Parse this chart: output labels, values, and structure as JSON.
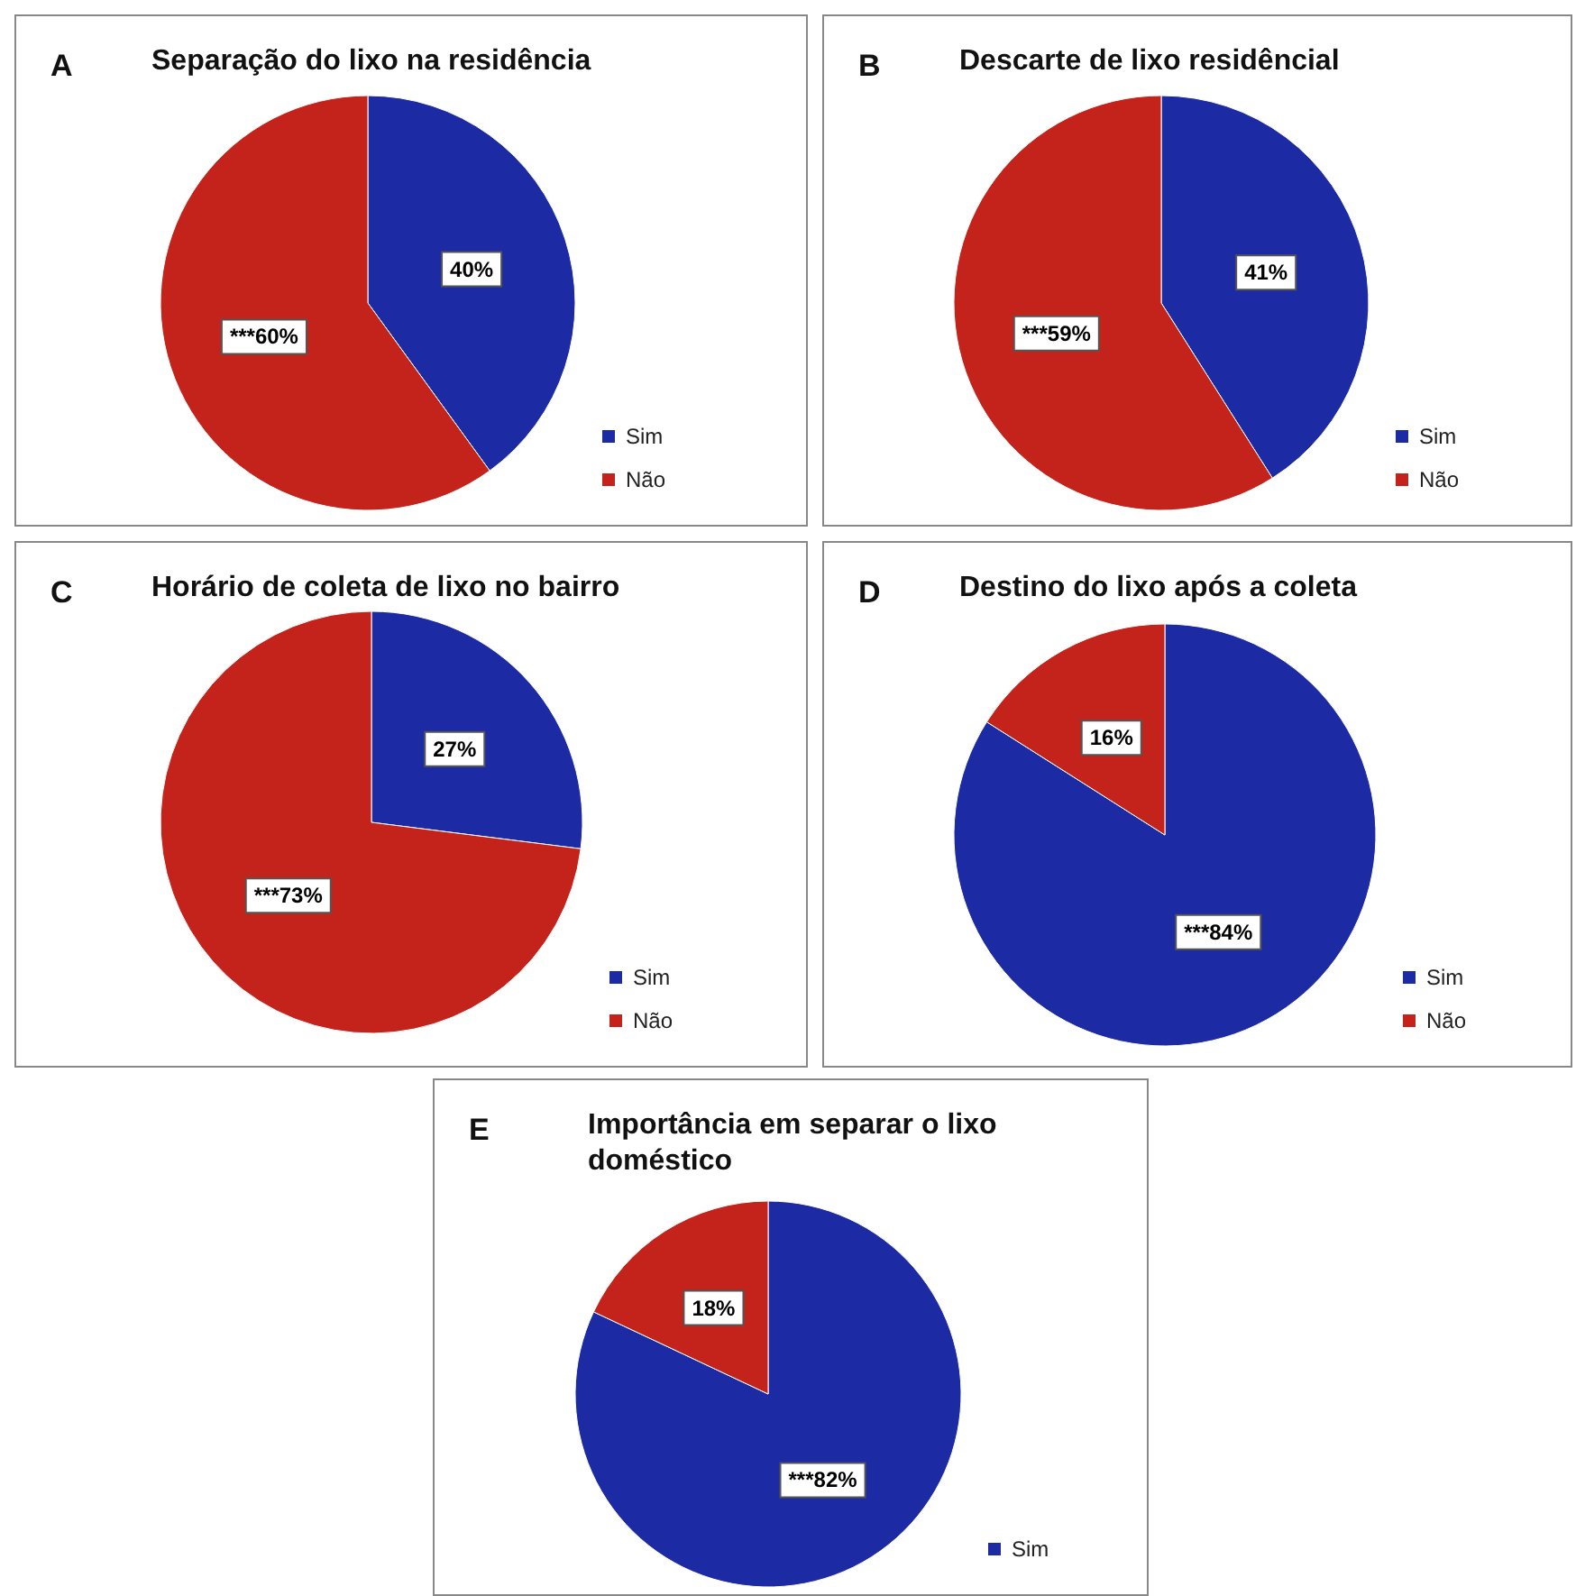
{
  "chart_data": [
    {
      "type": "pie",
      "title": "Separação do lixo na residência",
      "annotations": [
        "A"
      ],
      "categories": [
        "Sim",
        "Não"
      ],
      "values": [
        40,
        60
      ],
      "value_labels": [
        "40%",
        "***60%"
      ],
      "colors": [
        "#1c2aa3",
        "#c3231b"
      ],
      "legend": "bottom right"
    },
    {
      "type": "pie",
      "title": "Descarte de lixo residêncial",
      "annotations": [
        "B"
      ],
      "categories": [
        "Sim",
        "Não"
      ],
      "values": [
        41,
        59
      ],
      "value_labels": [
        "41%",
        "***59%"
      ],
      "colors": [
        "#1c2aa3",
        "#c3231b"
      ],
      "legend": "bottom right"
    },
    {
      "type": "pie",
      "title": "Horário de coleta de lixo no bairro",
      "annotations": [
        "C"
      ],
      "categories": [
        "Sim",
        "Não"
      ],
      "values": [
        27,
        73
      ],
      "value_labels": [
        "27%",
        "***73%"
      ],
      "colors": [
        "#1c2aa3",
        "#c3231b"
      ],
      "legend": "bottom right"
    },
    {
      "type": "pie",
      "title": "Destino do lixo após a coleta",
      "annotations": [
        "D"
      ],
      "categories": [
        "Sim",
        "Não"
      ],
      "values": [
        84,
        16
      ],
      "value_labels": [
        "***84%",
        "16%"
      ],
      "colors": [
        "#1c2aa3",
        "#c3231b"
      ],
      "legend": "bottom right"
    },
    {
      "type": "pie",
      "title": "Importância em separar o lixo doméstico",
      "annotations": [
        "E"
      ],
      "categories": [
        "Sim",
        null
      ],
      "values": [
        82,
        18
      ],
      "value_labels": [
        "***82%",
        "18%"
      ],
      "colors": [
        "#1c2aa3",
        "#c3231b"
      ],
      "legend": "bottom right"
    }
  ]
}
